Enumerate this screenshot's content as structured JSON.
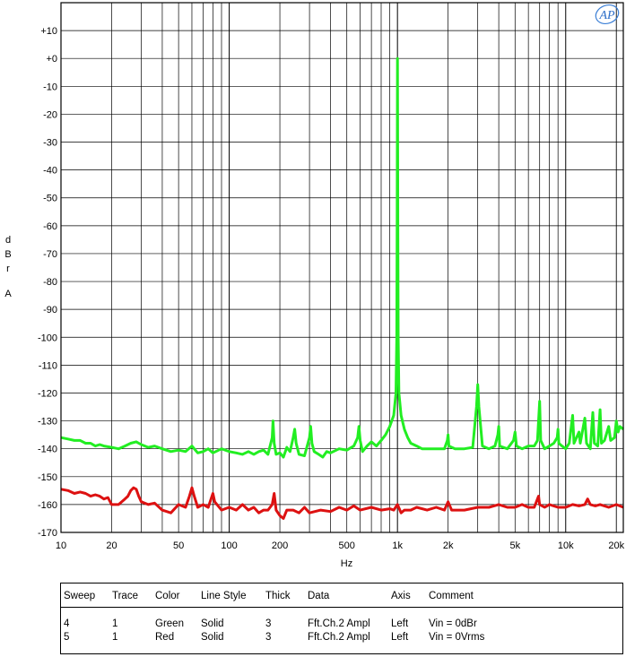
{
  "chart_data": {
    "type": "line",
    "title": "",
    "xlabel": "Hz",
    "ylabel": [
      "d",
      "B",
      "r",
      "A"
    ],
    "x_scale": "log",
    "xlim": [
      10,
      22000
    ],
    "ylim": [
      -170,
      20
    ],
    "x_tick_labels": [
      {
        "v": 10,
        "t": "10"
      },
      {
        "v": 20,
        "t": "20"
      },
      {
        "v": 50,
        "t": "50"
      },
      {
        "v": 100,
        "t": "100"
      },
      {
        "v": 200,
        "t": "200"
      },
      {
        "v": 500,
        "t": "500"
      },
      {
        "v": 1000,
        "t": "1k"
      },
      {
        "v": 2000,
        "t": "2k"
      },
      {
        "v": 5000,
        "t": "5k"
      },
      {
        "v": 10000,
        "t": "10k"
      },
      {
        "v": 20000,
        "t": "20k"
      }
    ],
    "y_tick_labels": [
      {
        "v": 10,
        "t": "+10"
      },
      {
        "v": 0,
        "t": "+0"
      },
      {
        "v": -10,
        "t": "-10"
      },
      {
        "v": -20,
        "t": "-20"
      },
      {
        "v": -30,
        "t": "-30"
      },
      {
        "v": -40,
        "t": "-40"
      },
      {
        "v": -50,
        "t": "-50"
      },
      {
        "v": -60,
        "t": "-60"
      },
      {
        "v": -70,
        "t": "-70"
      },
      {
        "v": -80,
        "t": "-80"
      },
      {
        "v": -90,
        "t": "-90"
      },
      {
        "v": -100,
        "t": "-100"
      },
      {
        "v": -110,
        "t": "-110"
      },
      {
        "v": -120,
        "t": "-120"
      },
      {
        "v": -130,
        "t": "-130"
      },
      {
        "v": -140,
        "t": "-140"
      },
      {
        "v": -150,
        "t": "-150"
      },
      {
        "v": -160,
        "t": "-160"
      },
      {
        "v": -170,
        "t": "-170"
      }
    ],
    "grid": true,
    "series": [
      {
        "color": "#22ee22",
        "points": [
          [
            10,
            -136
          ],
          [
            11,
            -136.5
          ],
          [
            12,
            -137
          ],
          [
            13,
            -137
          ],
          [
            14,
            -138
          ],
          [
            15,
            -138
          ],
          [
            16,
            -139
          ],
          [
            17,
            -138.5
          ],
          [
            18,
            -139
          ],
          [
            20,
            -139.5
          ],
          [
            22,
            -140
          ],
          [
            24,
            -139
          ],
          [
            26,
            -138
          ],
          [
            28,
            -137.5
          ],
          [
            30,
            -138.5
          ],
          [
            33,
            -139.5
          ],
          [
            36,
            -139
          ],
          [
            40,
            -140
          ],
          [
            45,
            -141
          ],
          [
            50,
            -140.5
          ],
          [
            55,
            -141
          ],
          [
            60,
            -139
          ],
          [
            65,
            -141.5
          ],
          [
            70,
            -141
          ],
          [
            75,
            -140
          ],
          [
            80,
            -141.5
          ],
          [
            90,
            -140
          ],
          [
            100,
            -141
          ],
          [
            110,
            -141.5
          ],
          [
            120,
            -142
          ],
          [
            130,
            -141
          ],
          [
            140,
            -142
          ],
          [
            150,
            -141
          ],
          [
            160,
            -140.5
          ],
          [
            170,
            -142
          ],
          [
            180,
            -136
          ],
          [
            182,
            -130
          ],
          [
            185,
            -138
          ],
          [
            190,
            -142
          ],
          [
            200,
            -141.5
          ],
          [
            210,
            -143
          ],
          [
            220,
            -139.5
          ],
          [
            230,
            -141
          ],
          [
            240,
            -136
          ],
          [
            245,
            -133
          ],
          [
            250,
            -138
          ],
          [
            260,
            -142
          ],
          [
            280,
            -142.5
          ],
          [
            300,
            -136
          ],
          [
            305,
            -132
          ],
          [
            310,
            -138
          ],
          [
            320,
            -141
          ],
          [
            340,
            -142
          ],
          [
            360,
            -143
          ],
          [
            380,
            -141
          ],
          [
            400,
            -141.5
          ],
          [
            450,
            -140
          ],
          [
            500,
            -140.5
          ],
          [
            550,
            -139
          ],
          [
            580,
            -136
          ],
          [
            590,
            -132
          ],
          [
            600,
            -137
          ],
          [
            620,
            -141
          ],
          [
            660,
            -139
          ],
          [
            700,
            -137.5
          ],
          [
            750,
            -139
          ],
          [
            800,
            -137
          ],
          [
            850,
            -135
          ],
          [
            900,
            -132
          ],
          [
            950,
            -128
          ],
          [
            980,
            -120
          ],
          [
            990,
            -100
          ],
          [
            995,
            -60
          ],
          [
            1000,
            0
          ],
          [
            1005,
            -60
          ],
          [
            1010,
            -100
          ],
          [
            1020,
            -120
          ],
          [
            1050,
            -128
          ],
          [
            1100,
            -133
          ],
          [
            1150,
            -136
          ],
          [
            1200,
            -138
          ],
          [
            1300,
            -139
          ],
          [
            1400,
            -140
          ],
          [
            1500,
            -140
          ],
          [
            1700,
            -140
          ],
          [
            1900,
            -140
          ],
          [
            1980,
            -137
          ],
          [
            2000,
            -135
          ],
          [
            2020,
            -139
          ],
          [
            2200,
            -140
          ],
          [
            2500,
            -140
          ],
          [
            2800,
            -139.5
          ],
          [
            2950,
            -125
          ],
          [
            3000,
            -117
          ],
          [
            3050,
            -125
          ],
          [
            3200,
            -139
          ],
          [
            3500,
            -140
          ],
          [
            3800,
            -139
          ],
          [
            3950,
            -135
          ],
          [
            4000,
            -132
          ],
          [
            4050,
            -139
          ],
          [
            4500,
            -140
          ],
          [
            4900,
            -137
          ],
          [
            5000,
            -134
          ],
          [
            5100,
            -139
          ],
          [
            5500,
            -140
          ],
          [
            6000,
            -139
          ],
          [
            6500,
            -139
          ],
          [
            6800,
            -137
          ],
          [
            7000,
            -123
          ],
          [
            7100,
            -137
          ],
          [
            7500,
            -140
          ],
          [
            8000,
            -139
          ],
          [
            8500,
            -138
          ],
          [
            8900,
            -136
          ],
          [
            9000,
            -133
          ],
          [
            9100,
            -138
          ],
          [
            9500,
            -139
          ],
          [
            10000,
            -140
          ],
          [
            10500,
            -138
          ],
          [
            11000,
            -128
          ],
          [
            11200,
            -138
          ],
          [
            12000,
            -134
          ],
          [
            12200,
            -138
          ],
          [
            13000,
            -129
          ],
          [
            13300,
            -138
          ],
          [
            14000,
            -140
          ],
          [
            14500,
            -127
          ],
          [
            14800,
            -138
          ],
          [
            15500,
            -139
          ],
          [
            16000,
            -126
          ],
          [
            16300,
            -138
          ],
          [
            17000,
            -137
          ],
          [
            18000,
            -132
          ],
          [
            18500,
            -137
          ],
          [
            19500,
            -136
          ],
          [
            20000,
            -130
          ],
          [
            20500,
            -134
          ],
          [
            21000,
            -132
          ],
          [
            22000,
            -133
          ]
        ]
      },
      {
        "color": "#dd1111",
        "points": [
          [
            10,
            -154.5
          ],
          [
            11,
            -155
          ],
          [
            12,
            -156
          ],
          [
            13,
            -155.5
          ],
          [
            14,
            -156
          ],
          [
            15,
            -157
          ],
          [
            16,
            -156.5
          ],
          [
            17,
            -157
          ],
          [
            18,
            -158
          ],
          [
            19,
            -157.5
          ],
          [
            20,
            -160
          ],
          [
            22,
            -160
          ],
          [
            24,
            -158
          ],
          [
            25,
            -157
          ],
          [
            26,
            -155
          ],
          [
            27,
            -154
          ],
          [
            28,
            -154.5
          ],
          [
            29,
            -157
          ],
          [
            30,
            -159
          ],
          [
            33,
            -160
          ],
          [
            36,
            -159.5
          ],
          [
            40,
            -162
          ],
          [
            45,
            -163
          ],
          [
            50,
            -160
          ],
          [
            55,
            -161
          ],
          [
            58,
            -157
          ],
          [
            60,
            -154
          ],
          [
            62,
            -157
          ],
          [
            65,
            -161
          ],
          [
            70,
            -160
          ],
          [
            75,
            -161
          ],
          [
            78,
            -158
          ],
          [
            80,
            -156
          ],
          [
            82,
            -159
          ],
          [
            90,
            -162
          ],
          [
            100,
            -161
          ],
          [
            110,
            -162
          ],
          [
            120,
            -160
          ],
          [
            130,
            -162
          ],
          [
            140,
            -161
          ],
          [
            150,
            -163
          ],
          [
            160,
            -162
          ],
          [
            170,
            -162
          ],
          [
            180,
            -160
          ],
          [
            185,
            -156
          ],
          [
            190,
            -162
          ],
          [
            200,
            -164
          ],
          [
            210,
            -165
          ],
          [
            220,
            -162
          ],
          [
            240,
            -162
          ],
          [
            260,
            -163
          ],
          [
            280,
            -161
          ],
          [
            300,
            -163
          ],
          [
            350,
            -162
          ],
          [
            400,
            -162.5
          ],
          [
            450,
            -161
          ],
          [
            500,
            -162
          ],
          [
            550,
            -160.5
          ],
          [
            600,
            -162
          ],
          [
            700,
            -161
          ],
          [
            800,
            -162
          ],
          [
            900,
            -161.5
          ],
          [
            950,
            -162
          ],
          [
            1000,
            -160
          ],
          [
            1050,
            -163
          ],
          [
            1100,
            -162
          ],
          [
            1200,
            -162
          ],
          [
            1300,
            -161
          ],
          [
            1500,
            -162
          ],
          [
            1700,
            -161
          ],
          [
            1900,
            -162
          ],
          [
            2000,
            -159
          ],
          [
            2100,
            -162
          ],
          [
            2500,
            -162
          ],
          [
            3000,
            -161
          ],
          [
            3500,
            -161
          ],
          [
            4000,
            -160
          ],
          [
            4500,
            -161
          ],
          [
            5000,
            -161
          ],
          [
            5500,
            -160
          ],
          [
            6000,
            -161
          ],
          [
            6500,
            -161
          ],
          [
            6800,
            -158
          ],
          [
            6900,
            -157
          ],
          [
            7000,
            -160
          ],
          [
            7500,
            -161
          ],
          [
            8000,
            -160
          ],
          [
            9000,
            -161
          ],
          [
            10000,
            -161
          ],
          [
            11000,
            -160
          ],
          [
            12000,
            -160.5
          ],
          [
            13000,
            -160
          ],
          [
            13500,
            -158
          ],
          [
            14000,
            -160
          ],
          [
            15000,
            -160.5
          ],
          [
            16000,
            -160
          ],
          [
            18000,
            -161
          ],
          [
            20000,
            -160
          ],
          [
            22000,
            -161
          ]
        ]
      }
    ]
  },
  "ylabel_text": [
    "d",
    "B",
    "r",
    "A"
  ],
  "xlabel_text": "Hz",
  "logo_text": "AP",
  "legend": {
    "headers": {
      "sweep": "Sweep",
      "trace": "Trace",
      "color": "Color",
      "style": "Line Style",
      "thick": "Thick",
      "data": "Data",
      "axis": "Axis",
      "comment": "Comment"
    },
    "rows": [
      {
        "sweep": "4",
        "trace": "1",
        "color": "Green",
        "style": "Solid",
        "thick": "3",
        "data": "Fft.Ch.2 Ampl",
        "axis": "Left",
        "comment": "Vin = 0dBr"
      },
      {
        "sweep": "5",
        "trace": "1",
        "color": "Red",
        "style": "Solid",
        "thick": "3",
        "data": "Fft.Ch.2 Ampl",
        "axis": "Left",
        "comment": "Vin = 0Vrms"
      }
    ]
  }
}
